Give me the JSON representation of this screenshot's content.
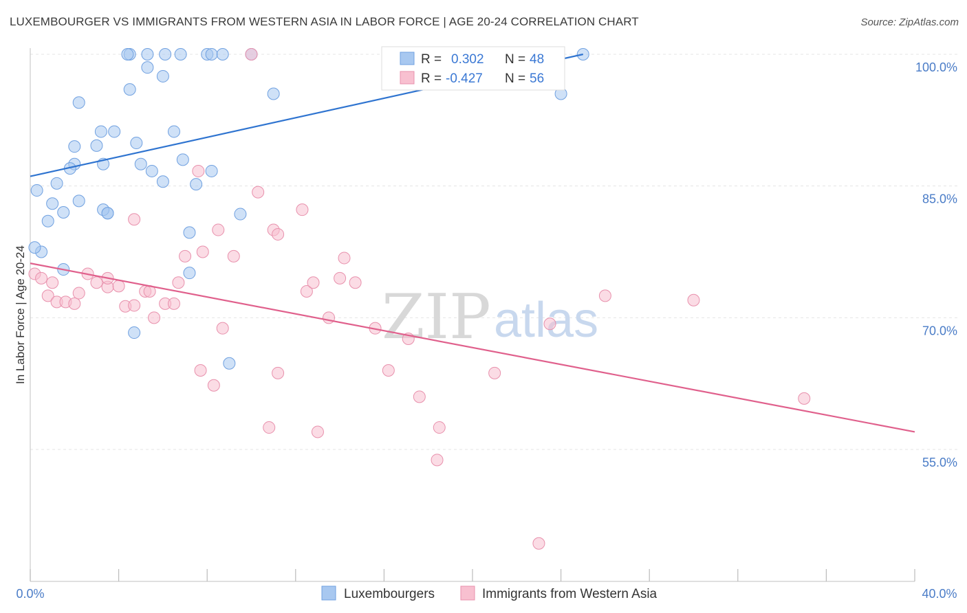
{
  "title": "LUXEMBOURGER VS IMMIGRANTS FROM WESTERN ASIA IN LABOR FORCE | AGE 20-24 CORRELATION CHART",
  "source": "Source: ZipAtlas.com",
  "watermark": {
    "zip": "ZIP",
    "atlas": "atlas"
  },
  "legend": {
    "rows": [
      {
        "r_label": "R =",
        "r_value": "0.302",
        "n_label": "N =",
        "n_value": "48",
        "color": "#a8c8f0",
        "stroke": "#6fa0e0"
      },
      {
        "r_label": "R =",
        "r_value": "-0.427",
        "n_label": "N =",
        "n_value": "56",
        "color": "#f8c0d0",
        "stroke": "#e890ac"
      }
    ]
  },
  "chart_data": {
    "type": "scatter",
    "title": "LUXEMBOURGER VS IMMIGRANTS FROM WESTERN ASIA IN LABOR FORCE | AGE 20-24 CORRELATION CHART",
    "xlabel": "",
    "ylabel": "In Labor Force | Age 20-24",
    "xlim": [
      0,
      40
    ],
    "ylim": [
      39.5,
      101.5
    ],
    "x_tick_labels": [
      "0.0%",
      "40.0%"
    ],
    "y_tick_values": [
      55,
      70,
      85,
      100
    ],
    "y_tick_labels": [
      "55.0%",
      "70.0%",
      "85.0%",
      "100.0%"
    ],
    "grid": true,
    "legend_position": "bottom",
    "series": [
      {
        "name": "Luxembourgers",
        "color": "#a8c8f0",
        "stroke": "#6fa0e0",
        "line_color": "#2f74d0",
        "trend": [
          [
            0,
            86.1
          ],
          [
            25,
            100.0
          ]
        ],
        "points": [
          [
            0.3,
            84.5
          ],
          [
            0.5,
            77.5
          ],
          [
            0.8,
            81.0
          ],
          [
            1.0,
            83.0
          ],
          [
            1.2,
            85.3
          ],
          [
            1.5,
            82.0
          ],
          [
            2.0,
            87.5
          ],
          [
            2.0,
            89.5
          ],
          [
            2.2,
            83.3
          ],
          [
            3.0,
            89.6
          ],
          [
            3.5,
            81.9
          ],
          [
            1.8,
            87.0
          ],
          [
            3.3,
            87.5
          ],
          [
            2.2,
            94.5
          ],
          [
            3.2,
            91.2
          ],
          [
            3.8,
            91.2
          ],
          [
            3.3,
            82.3
          ],
          [
            4.5,
            100.0
          ],
          [
            4.5,
            96.0
          ],
          [
            4.4,
            100.0
          ],
          [
            5.3,
            100.0
          ],
          [
            5.3,
            98.5
          ],
          [
            6.1,
            100.0
          ],
          [
            6.8,
            100.0
          ],
          [
            6.0,
            97.5
          ],
          [
            8.0,
            100.0
          ],
          [
            10.0,
            100.0
          ],
          [
            8.2,
            100.0
          ],
          [
            8.7,
            100.0
          ],
          [
            6.5,
            91.2
          ],
          [
            8.2,
            86.7
          ],
          [
            6.0,
            85.5
          ],
          [
            7.5,
            85.2
          ],
          [
            5.5,
            86.7
          ],
          [
            4.8,
            89.9
          ],
          [
            7.2,
            75.1
          ],
          [
            6.9,
            88.0
          ],
          [
            5.0,
            87.5
          ],
          [
            11.0,
            95.5
          ],
          [
            9.5,
            81.8
          ],
          [
            7.2,
            79.7
          ],
          [
            4.7,
            68.3
          ],
          [
            9.0,
            64.8
          ],
          [
            3.5,
            81.9
          ],
          [
            24.0,
            95.5
          ],
          [
            25.0,
            100.0
          ],
          [
            0.2,
            78.0
          ],
          [
            1.5,
            75.5
          ]
        ]
      },
      {
        "name": "Immigrants from Western Asia",
        "color": "#f8c0d0",
        "stroke": "#e890ac",
        "line_color": "#e0608c",
        "trend": [
          [
            0,
            76.2
          ],
          [
            40,
            57.0
          ]
        ],
        "points": [
          [
            0.2,
            75.0
          ],
          [
            0.5,
            74.5
          ],
          [
            0.8,
            72.5
          ],
          [
            1.0,
            74.0
          ],
          [
            1.2,
            71.8
          ],
          [
            1.6,
            71.8
          ],
          [
            2.0,
            71.6
          ],
          [
            2.2,
            72.8
          ],
          [
            2.6,
            75.0
          ],
          [
            3.0,
            74.0
          ],
          [
            3.5,
            73.5
          ],
          [
            3.5,
            74.5
          ],
          [
            4.0,
            73.6
          ],
          [
            4.3,
            71.3
          ],
          [
            4.7,
            71.4
          ],
          [
            5.2,
            73.0
          ],
          [
            5.4,
            73.0
          ],
          [
            5.6,
            70.0
          ],
          [
            6.1,
            71.6
          ],
          [
            6.5,
            71.6
          ],
          [
            6.7,
            74.0
          ],
          [
            7.0,
            77.0
          ],
          [
            7.6,
            86.7
          ],
          [
            7.7,
            64.0
          ],
          [
            7.8,
            77.5
          ],
          [
            8.3,
            62.3
          ],
          [
            8.5,
            80.0
          ],
          [
            8.7,
            68.8
          ],
          [
            9.2,
            77.0
          ],
          [
            10.0,
            100.0
          ],
          [
            10.3,
            84.3
          ],
          [
            10.8,
            57.5
          ],
          [
            11.0,
            80.0
          ],
          [
            11.2,
            79.5
          ],
          [
            11.2,
            63.7
          ],
          [
            12.3,
            82.3
          ],
          [
            12.5,
            73.0
          ],
          [
            12.8,
            74.0
          ],
          [
            13.0,
            57.0
          ],
          [
            13.5,
            70.0
          ],
          [
            14.0,
            74.5
          ],
          [
            14.2,
            76.8
          ],
          [
            14.7,
            74.0
          ],
          [
            15.6,
            68.8
          ],
          [
            16.2,
            64.0
          ],
          [
            17.1,
            67.6
          ],
          [
            17.6,
            61.0
          ],
          [
            18.5,
            57.5
          ],
          [
            18.4,
            53.8
          ],
          [
            21.0,
            63.7
          ],
          [
            23.5,
            69.3
          ],
          [
            26.0,
            72.5
          ],
          [
            30.0,
            72.0
          ],
          [
            35.0,
            60.8
          ],
          [
            23.0,
            44.3
          ],
          [
            4.7,
            81.2
          ]
        ]
      }
    ]
  }
}
